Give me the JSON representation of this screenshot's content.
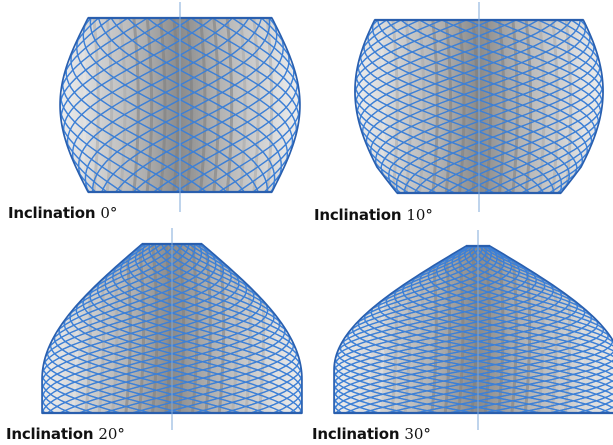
{
  "panels": [
    {
      "id": "panel-inclination-0",
      "label": "Inclination",
      "value": "0°",
      "inclination_deg": 0
    },
    {
      "id": "panel-inclination-10",
      "label": "Inclination",
      "value": "10°",
      "inclination_deg": 10
    },
    {
      "id": "panel-inclination-20",
      "label": "Inclination",
      "value": "20°",
      "inclination_deg": 20
    },
    {
      "id": "panel-inclination-30",
      "label": "Inclination",
      "value": "30°",
      "inclination_deg": 30
    }
  ],
  "colors": {
    "strut": "#3d7fd6",
    "strut_dark": "#2a5fae",
    "axis": "#7fa9da",
    "fill_dark": "#7d7d7d",
    "fill_mid": "#a9a9a9",
    "fill_light": "#e6e6e6"
  }
}
